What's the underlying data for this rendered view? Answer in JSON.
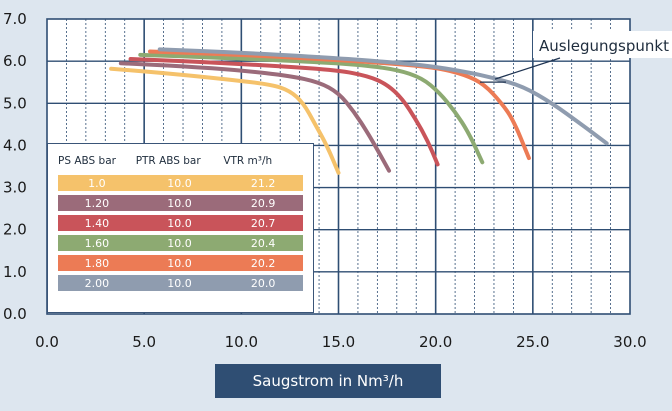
{
  "chart_data": {
    "type": "line",
    "xlim": [
      0,
      30
    ],
    "ylim": [
      0,
      7
    ],
    "x_ticks": [
      "0.0",
      "5.0",
      "10.0",
      "15.0",
      "20.0",
      "25.0",
      "30.0"
    ],
    "y_ticks": [
      "0.0",
      "1.0",
      "2.0",
      "3.0",
      "4.0",
      "5.0",
      "6.0",
      "7.0"
    ],
    "xlabel": "Saugstrom in Nm³/h",
    "grid": true,
    "annotation": {
      "text": "Auslegungspunkt",
      "x": 23.0,
      "y": 5.55
    },
    "legend": {
      "placement": "bottom-left",
      "headers": {
        "ps": "PS ABS bar",
        "ptr": "PTR ABS bar",
        "vtr": "VTR m³/h"
      },
      "rows": [
        {
          "ps": "1.0",
          "ptr": "10.0",
          "vtr": "21.2",
          "color": "#f5c26b"
        },
        {
          "ps": "1.20",
          "ptr": "10.0",
          "vtr": "20.9",
          "color": "#9b6b7a"
        },
        {
          "ps": "1.40",
          "ptr": "10.0",
          "vtr": "20.7",
          "color": "#c9545a"
        },
        {
          "ps": "1.60",
          "ptr": "10.0",
          "vtr": "20.4",
          "color": "#8daa72"
        },
        {
          "ps": "1.80",
          "ptr": "10.0",
          "vtr": "20.2",
          "color": "#ec7b55"
        },
        {
          "ps": "2.00",
          "ptr": "10.0",
          "vtr": "20.0",
          "color": "#8f9caf"
        }
      ]
    },
    "series": [
      {
        "color": "#f5c26b",
        "points": [
          [
            3.3,
            5.82
          ],
          [
            6,
            5.72
          ],
          [
            9,
            5.58
          ],
          [
            11.5,
            5.45
          ],
          [
            12.5,
            5.3
          ],
          [
            13.2,
            5.0
          ],
          [
            13.8,
            4.5
          ],
          [
            14.4,
            4.0
          ],
          [
            15.0,
            3.35
          ]
        ]
      },
      {
        "color": "#9b6b7a",
        "points": [
          [
            3.8,
            5.95
          ],
          [
            7,
            5.88
          ],
          [
            10,
            5.78
          ],
          [
            12.5,
            5.65
          ],
          [
            14,
            5.5
          ],
          [
            15,
            5.25
          ],
          [
            15.8,
            4.8
          ],
          [
            16.5,
            4.3
          ],
          [
            17.0,
            3.9
          ],
          [
            17.6,
            3.4
          ]
        ]
      },
      {
        "color": "#c9545a",
        "points": [
          [
            4.3,
            6.05
          ],
          [
            8,
            5.98
          ],
          [
            12,
            5.88
          ],
          [
            15,
            5.78
          ],
          [
            16.5,
            5.65
          ],
          [
            17.5,
            5.45
          ],
          [
            18.3,
            5.1
          ],
          [
            19,
            4.6
          ],
          [
            19.6,
            4.1
          ],
          [
            20.1,
            3.55
          ]
        ]
      },
      {
        "color": "#8daa72",
        "points": [
          [
            4.8,
            6.15
          ],
          [
            9,
            6.08
          ],
          [
            13,
            6.0
          ],
          [
            16,
            5.92
          ],
          [
            18,
            5.8
          ],
          [
            19.3,
            5.6
          ],
          [
            20.2,
            5.25
          ],
          [
            21,
            4.8
          ],
          [
            21.7,
            4.3
          ],
          [
            22.4,
            3.6
          ]
        ]
      },
      {
        "color": "#ec7b55",
        "points": [
          [
            5.3,
            6.23
          ],
          [
            10,
            6.15
          ],
          [
            14,
            6.05
          ],
          [
            17,
            5.97
          ],
          [
            20,
            5.85
          ],
          [
            21.5,
            5.68
          ],
          [
            22.5,
            5.45
          ],
          [
            23.4,
            5.0
          ],
          [
            24,
            4.6
          ],
          [
            24.8,
            3.7
          ]
        ]
      },
      {
        "color": "#8f9caf",
        "points": [
          [
            5.8,
            6.28
          ],
          [
            10,
            6.2
          ],
          [
            14,
            6.1
          ],
          [
            17,
            6.0
          ],
          [
            19.5,
            5.9
          ],
          [
            21.5,
            5.75
          ],
          [
            23,
            5.6
          ],
          [
            24.5,
            5.4
          ],
          [
            26,
            5.0
          ],
          [
            27.5,
            4.5
          ],
          [
            28.8,
            4.05
          ]
        ]
      }
    ]
  }
}
